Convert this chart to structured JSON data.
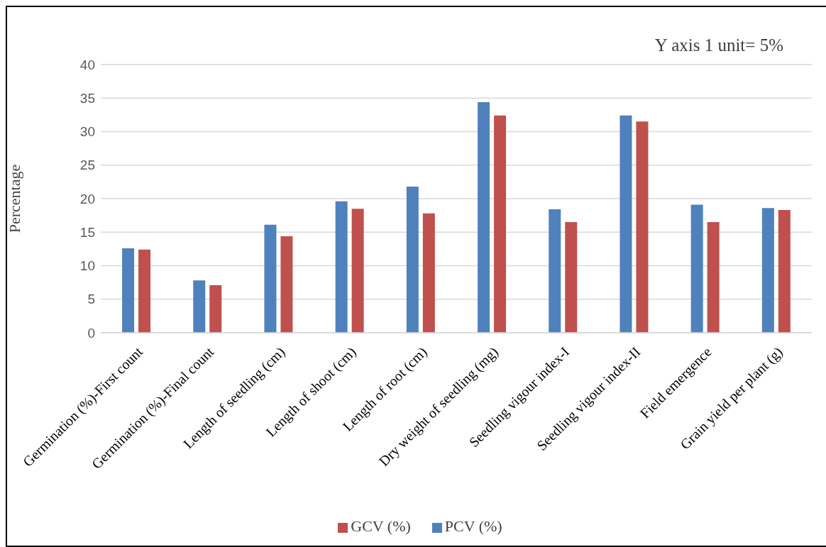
{
  "chart_data": {
    "type": "bar",
    "ylabel": "Percentage",
    "annotations": [
      "Y axis 1 unit= 5%"
    ],
    "categories": [
      "Germination (%)-First count",
      "Germination (%)-Final count",
      "Length of seedling (cm)",
      "Length of shoot (cm)",
      "Length of root (cm)",
      "Dry weight of seedling (mg)",
      "Seedling vigour index-I",
      "Seedling vigour index-II",
      "Field emergence",
      "Grain yield per plant (g)"
    ],
    "series": [
      {
        "name": "PCV (%)",
        "color": "#4f81bd",
        "values": [
          12.6,
          7.8,
          16.1,
          19.6,
          21.8,
          34.4,
          18.4,
          32.4,
          19.1,
          18.6
        ]
      },
      {
        "name": "GCV (%)",
        "color": "#c0504d",
        "values": [
          12.4,
          7.1,
          14.4,
          18.5,
          17.8,
          32.4,
          16.5,
          31.5,
          16.5,
          18.3
        ]
      }
    ],
    "ylim": [
      0,
      40
    ],
    "yticks": [
      0,
      5,
      10,
      15,
      20,
      25,
      30,
      35,
      40
    ],
    "grid": "y",
    "legend": "bottom"
  }
}
